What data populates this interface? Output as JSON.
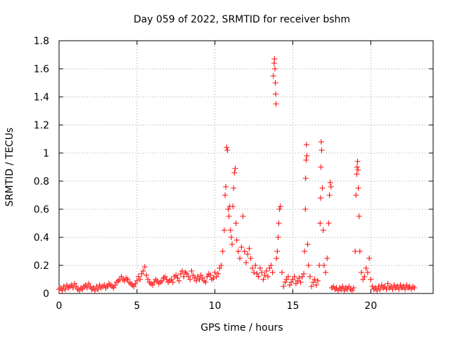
{
  "chart_data": {
    "type": "scatter",
    "title": "Day 059 of 2022, SRMTID for receiver bshm",
    "xlabel": "GPS time / hours",
    "ylabel": "SRMTID / TECUs",
    "xlim": [
      0,
      24
    ],
    "ylim": [
      0,
      1.8
    ],
    "xticks": [
      0,
      5,
      10,
      15,
      20
    ],
    "xtick_labels": [
      "0",
      "5",
      "10",
      "15",
      "20"
    ],
    "yticks": [
      0,
      0.2,
      0.4,
      0.6,
      0.8,
      1.0,
      1.2,
      1.4,
      1.6,
      1.8
    ],
    "ytick_labels": [
      "0",
      "0.2",
      "0.4",
      "0.6",
      "0.8",
      "1",
      "1.2",
      "1.4",
      "1.6",
      "1.8"
    ],
    "grid": true,
    "marker": "+",
    "color": "#ff0000",
    "series": [
      {
        "name": "SRMTID",
        "points": [
          [
            0.0,
            0.03
          ],
          [
            0.1,
            0.04
          ],
          [
            0.2,
            0.02
          ],
          [
            0.3,
            0.05
          ],
          [
            0.4,
            0.03
          ],
          [
            0.5,
            0.06
          ],
          [
            0.6,
            0.04
          ],
          [
            0.7,
            0.05
          ],
          [
            0.8,
            0.06
          ],
          [
            0.9,
            0.04
          ],
          [
            1.0,
            0.07
          ],
          [
            1.1,
            0.05
          ],
          [
            1.2,
            0.03
          ],
          [
            1.3,
            0.02
          ],
          [
            1.4,
            0.04
          ],
          [
            1.5,
            0.03
          ],
          [
            1.6,
            0.05
          ],
          [
            1.7,
            0.06
          ],
          [
            1.8,
            0.04
          ],
          [
            1.9,
            0.07
          ],
          [
            2.0,
            0.05
          ],
          [
            2.1,
            0.03
          ],
          [
            2.2,
            0.04
          ],
          [
            2.3,
            0.02
          ],
          [
            2.4,
            0.05
          ],
          [
            2.5,
            0.03
          ],
          [
            2.6,
            0.06
          ],
          [
            2.7,
            0.04
          ],
          [
            2.8,
            0.05
          ],
          [
            2.9,
            0.06
          ],
          [
            3.0,
            0.04
          ],
          [
            3.1,
            0.05
          ],
          [
            3.2,
            0.07
          ],
          [
            3.3,
            0.06
          ],
          [
            3.4,
            0.05
          ],
          [
            3.5,
            0.04
          ],
          [
            3.6,
            0.06
          ],
          [
            3.7,
            0.08
          ],
          [
            3.8,
            0.09
          ],
          [
            3.9,
            0.1
          ],
          [
            4.0,
            0.12
          ],
          [
            4.1,
            0.1
          ],
          [
            4.2,
            0.09
          ],
          [
            4.3,
            0.11
          ],
          [
            4.4,
            0.1
          ],
          [
            4.5,
            0.08
          ],
          [
            4.6,
            0.07
          ],
          [
            4.7,
            0.06
          ],
          [
            4.8,
            0.05
          ],
          [
            4.9,
            0.07
          ],
          [
            5.0,
            0.09
          ],
          [
            5.1,
            0.12
          ],
          [
            5.2,
            0.1
          ],
          [
            5.3,
            0.14
          ],
          [
            5.4,
            0.16
          ],
          [
            5.5,
            0.19
          ],
          [
            5.6,
            0.13
          ],
          [
            5.7,
            0.1
          ],
          [
            5.8,
            0.08
          ],
          [
            5.9,
            0.07
          ],
          [
            6.0,
            0.06
          ],
          [
            6.1,
            0.08
          ],
          [
            6.2,
            0.1
          ],
          [
            6.3,
            0.09
          ],
          [
            6.4,
            0.07
          ],
          [
            6.5,
            0.08
          ],
          [
            6.6,
            0.09
          ],
          [
            6.7,
            0.11
          ],
          [
            6.8,
            0.12
          ],
          [
            6.9,
            0.1
          ],
          [
            7.0,
            0.08
          ],
          [
            7.1,
            0.09
          ],
          [
            7.2,
            0.1
          ],
          [
            7.3,
            0.08
          ],
          [
            7.4,
            0.12
          ],
          [
            7.5,
            0.13
          ],
          [
            7.6,
            0.11
          ],
          [
            7.7,
            0.09
          ],
          [
            7.8,
            0.14
          ],
          [
            7.9,
            0.16
          ],
          [
            8.0,
            0.12
          ],
          [
            8.1,
            0.15
          ],
          [
            8.2,
            0.14
          ],
          [
            8.3,
            0.12
          ],
          [
            8.4,
            0.1
          ],
          [
            8.5,
            0.16
          ],
          [
            8.6,
            0.13
          ],
          [
            8.7,
            0.11
          ],
          [
            8.8,
            0.09
          ],
          [
            8.9,
            0.12
          ],
          [
            9.0,
            0.1
          ],
          [
            9.1,
            0.13
          ],
          [
            9.2,
            0.11
          ],
          [
            9.3,
            0.09
          ],
          [
            9.4,
            0.08
          ],
          [
            9.5,
            0.12
          ],
          [
            9.6,
            0.14
          ],
          [
            9.7,
            0.13
          ],
          [
            9.8,
            0.1
          ],
          [
            9.9,
            0.11
          ],
          [
            10.0,
            0.15
          ],
          [
            10.1,
            0.12
          ],
          [
            10.2,
            0.14
          ],
          [
            10.3,
            0.18
          ],
          [
            10.4,
            0.2
          ],
          [
            10.5,
            0.3
          ],
          [
            10.6,
            0.45
          ],
          [
            10.65,
            0.7
          ],
          [
            10.7,
            0.76
          ],
          [
            10.75,
            1.04
          ],
          [
            10.8,
            1.02
          ],
          [
            10.85,
            0.6
          ],
          [
            10.9,
            0.55
          ],
          [
            10.95,
            0.62
          ],
          [
            11.0,
            0.45
          ],
          [
            11.05,
            0.4
          ],
          [
            11.1,
            0.35
          ],
          [
            11.15,
            0.62
          ],
          [
            11.2,
            0.75
          ],
          [
            11.25,
            0.86
          ],
          [
            11.3,
            0.89
          ],
          [
            11.35,
            0.5
          ],
          [
            11.4,
            0.38
          ],
          [
            11.5,
            0.3
          ],
          [
            11.6,
            0.25
          ],
          [
            11.7,
            0.33
          ],
          [
            11.8,
            0.55
          ],
          [
            11.9,
            0.3
          ],
          [
            12.0,
            0.22
          ],
          [
            12.1,
            0.28
          ],
          [
            12.2,
            0.32
          ],
          [
            12.3,
            0.25
          ],
          [
            12.4,
            0.18
          ],
          [
            12.5,
            0.15
          ],
          [
            12.6,
            0.2
          ],
          [
            12.7,
            0.14
          ],
          [
            12.8,
            0.12
          ],
          [
            12.9,
            0.18
          ],
          [
            13.0,
            0.15
          ],
          [
            13.1,
            0.1
          ],
          [
            13.2,
            0.13
          ],
          [
            13.3,
            0.16
          ],
          [
            13.4,
            0.12
          ],
          [
            13.5,
            0.18
          ],
          [
            13.6,
            0.2
          ],
          [
            13.7,
            0.15
          ],
          [
            13.75,
            1.55
          ],
          [
            13.8,
            1.64
          ],
          [
            13.82,
            1.67
          ],
          [
            13.85,
            1.6
          ],
          [
            13.88,
            1.5
          ],
          [
            13.9,
            1.42
          ],
          [
            13.92,
            1.35
          ],
          [
            13.95,
            0.25
          ],
          [
            14.0,
            0.3
          ],
          [
            14.05,
            0.4
          ],
          [
            14.1,
            0.5
          ],
          [
            14.15,
            0.6
          ],
          [
            14.2,
            0.62
          ],
          [
            14.3,
            0.15
          ],
          [
            14.4,
            0.05
          ],
          [
            14.5,
            0.08
          ],
          [
            14.6,
            0.1
          ],
          [
            14.7,
            0.12
          ],
          [
            14.8,
            0.06
          ],
          [
            14.9,
            0.08
          ],
          [
            15.0,
            0.1
          ],
          [
            15.1,
            0.12
          ],
          [
            15.2,
            0.07
          ],
          [
            15.3,
            0.09
          ],
          [
            15.4,
            0.11
          ],
          [
            15.5,
            0.08
          ],
          [
            15.6,
            0.12
          ],
          [
            15.7,
            0.14
          ],
          [
            15.75,
            0.3
          ],
          [
            15.8,
            0.6
          ],
          [
            15.82,
            0.82
          ],
          [
            15.85,
            0.95
          ],
          [
            15.88,
            1.06
          ],
          [
            15.9,
            0.98
          ],
          [
            15.95,
            0.35
          ],
          [
            16.0,
            0.2
          ],
          [
            16.1,
            0.12
          ],
          [
            16.2,
            0.05
          ],
          [
            16.3,
            0.08
          ],
          [
            16.4,
            0.1
          ],
          [
            16.5,
            0.06
          ],
          [
            16.6,
            0.09
          ],
          [
            16.7,
            0.2
          ],
          [
            16.75,
            0.5
          ],
          [
            16.78,
            0.68
          ],
          [
            16.8,
            0.9
          ],
          [
            16.82,
            1.08
          ],
          [
            16.85,
            1.02
          ],
          [
            16.9,
            0.75
          ],
          [
            16.95,
            0.45
          ],
          [
            17.0,
            0.2
          ],
          [
            17.1,
            0.15
          ],
          [
            17.2,
            0.25
          ],
          [
            17.3,
            0.5
          ],
          [
            17.35,
            0.7
          ],
          [
            17.4,
            0.79
          ],
          [
            17.45,
            0.76
          ],
          [
            17.5,
            0.04
          ],
          [
            17.6,
            0.05
          ],
          [
            17.7,
            0.03
          ],
          [
            17.8,
            0.04
          ],
          [
            17.9,
            0.02
          ],
          [
            18.0,
            0.04
          ],
          [
            18.1,
            0.03
          ],
          [
            18.2,
            0.05
          ],
          [
            18.3,
            0.02
          ],
          [
            18.4,
            0.04
          ],
          [
            18.5,
            0.03
          ],
          [
            18.6,
            0.05
          ],
          [
            18.7,
            0.03
          ],
          [
            18.8,
            0.02
          ],
          [
            18.9,
            0.04
          ],
          [
            19.0,
            0.3
          ],
          [
            19.05,
            0.7
          ],
          [
            19.1,
            0.85
          ],
          [
            19.12,
            0.9
          ],
          [
            19.15,
            0.94
          ],
          [
            19.18,
            0.88
          ],
          [
            19.2,
            0.75
          ],
          [
            19.25,
            0.55
          ],
          [
            19.3,
            0.3
          ],
          [
            19.4,
            0.15
          ],
          [
            19.5,
            0.1
          ],
          [
            19.6,
            0.12
          ],
          [
            19.7,
            0.18
          ],
          [
            19.8,
            0.15
          ],
          [
            19.9,
            0.25
          ],
          [
            20.0,
            0.1
          ],
          [
            20.1,
            0.05
          ],
          [
            20.2,
            0.03
          ],
          [
            20.3,
            0.04
          ],
          [
            20.4,
            0.02
          ],
          [
            20.5,
            0.05
          ],
          [
            20.6,
            0.03
          ],
          [
            20.7,
            0.06
          ],
          [
            20.8,
            0.04
          ],
          [
            20.9,
            0.05
          ],
          [
            21.0,
            0.03
          ],
          [
            21.1,
            0.07
          ],
          [
            21.2,
            0.04
          ],
          [
            21.3,
            0.05
          ],
          [
            21.4,
            0.03
          ],
          [
            21.5,
            0.06
          ],
          [
            21.6,
            0.04
          ],
          [
            21.7,
            0.05
          ],
          [
            21.8,
            0.03
          ],
          [
            21.9,
            0.06
          ],
          [
            22.0,
            0.04
          ],
          [
            22.1,
            0.05
          ],
          [
            22.2,
            0.03
          ],
          [
            22.3,
            0.06
          ],
          [
            22.4,
            0.04
          ],
          [
            22.5,
            0.05
          ],
          [
            22.6,
            0.03
          ],
          [
            22.7,
            0.05
          ],
          [
            22.8,
            0.04
          ]
        ]
      }
    ]
  }
}
